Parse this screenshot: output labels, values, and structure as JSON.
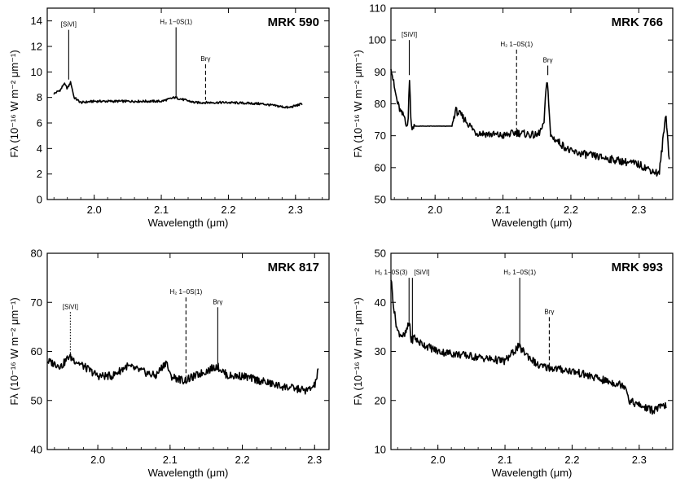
{
  "figure": {
    "x_label": "Wavelength (μm)",
    "y_label": "Fλ (10⁻¹⁶ W m⁻² μm⁻¹)"
  },
  "chart_data": [
    {
      "type": "line",
      "title": "MRK 590",
      "xlabel": "Wavelength (μm)",
      "ylabel": "Fλ (10⁻¹⁶ W m⁻² μm⁻¹)",
      "xlim": [
        1.93,
        2.35
      ],
      "ylim": [
        0,
        15
      ],
      "xticks": [
        "2.0",
        "2.1",
        "2.2",
        "2.3"
      ],
      "yticks": [
        "0",
        "2",
        "4",
        "6",
        "8",
        "10",
        "12",
        "14"
      ],
      "x": [
        1.94,
        1.95,
        1.955,
        1.96,
        1.965,
        1.97,
        1.98,
        2.0,
        2.05,
        2.1,
        2.12,
        2.15,
        2.2,
        2.25,
        2.29,
        2.31
      ],
      "y": [
        8.3,
        8.6,
        9.1,
        8.7,
        9.2,
        8.0,
        7.6,
        7.7,
        7.7,
        7.7,
        8.0,
        7.6,
        7.6,
        7.5,
        7.2,
        7.5
      ],
      "lines": [
        {
          "label": "[SiVI]",
          "x": 1.962,
          "top": 13.3,
          "bottom": 9.4,
          "style": "solid"
        },
        {
          "label": "H₂ 1−0S(1)",
          "x": 2.122,
          "top": 13.5,
          "bottom": 8.0,
          "style": "solid"
        },
        {
          "label": "Brγ",
          "x": 2.166,
          "top": 10.6,
          "bottom": 7.8,
          "style": "dashed"
        }
      ]
    },
    {
      "type": "line",
      "title": "MRK 766",
      "xlabel": "Wavelength (μm)",
      "ylabel": "Fλ (10⁻¹⁶ W m⁻² μm⁻¹)",
      "xlim": [
        1.935,
        2.35
      ],
      "ylim": [
        50,
        110
      ],
      "xticks": [
        "2.0",
        "2.1",
        "2.2",
        "2.3"
      ],
      "yticks": [
        "50",
        "60",
        "70",
        "80",
        "90",
        "100",
        "110"
      ],
      "x": [
        1.935,
        1.94,
        1.945,
        1.95,
        1.955,
        1.96,
        1.962,
        1.965,
        1.97,
        2.0,
        2.025,
        2.03,
        2.04,
        2.06,
        2.1,
        2.12,
        2.15,
        2.16,
        2.165,
        2.17,
        2.2,
        2.25,
        2.3,
        2.33,
        2.34,
        2.345
      ],
      "y": [
        92,
        85,
        80,
        77,
        76,
        72,
        89,
        73,
        73,
        73,
        73,
        78,
        76,
        71,
        70,
        71,
        70,
        73,
        89,
        70,
        65,
        63,
        61,
        58,
        77,
        62
      ],
      "lines": [
        {
          "label": "[SiVI]",
          "x": 1.962,
          "top": 100,
          "bottom": 89,
          "style": "solid"
        },
        {
          "label": "H₂ 1−0S(1)",
          "x": 2.12,
          "top": 97,
          "bottom": 70,
          "style": "dashed"
        },
        {
          "label": "Brγ",
          "x": 2.166,
          "top": 92,
          "bottom": 89,
          "style": "solid"
        }
      ]
    },
    {
      "type": "line",
      "title": "MRK 817",
      "xlabel": "Wavelength (μm)",
      "ylabel": "Fλ (10⁻¹⁶ W m⁻² μm⁻¹)",
      "xlim": [
        1.93,
        2.32
      ],
      "ylim": [
        40,
        80
      ],
      "xticks": [
        "2.0",
        "2.1",
        "2.2",
        "2.3"
      ],
      "yticks": [
        "40",
        "50",
        "60",
        "70",
        "80"
      ],
      "x": [
        1.93,
        1.95,
        1.96,
        1.97,
        1.98,
        2.0,
        2.02,
        2.04,
        2.06,
        2.08,
        2.095,
        2.1,
        2.12,
        2.15,
        2.165,
        2.18,
        2.2,
        2.25,
        2.29,
        2.3,
        2.305
      ],
      "y": [
        58,
        57,
        59,
        58,
        57,
        55,
        55,
        57,
        56,
        55,
        58,
        55,
        54,
        56,
        57,
        55,
        55,
        53,
        52,
        53,
        56
      ],
      "lines": [
        {
          "label": "[SiVI]",
          "x": 1.962,
          "top": 68,
          "bottom": 59,
          "style": "dotted"
        },
        {
          "label": "H₂ 1−0S(1)",
          "x": 2.122,
          "top": 71,
          "bottom": 54,
          "style": "dashed"
        },
        {
          "label": "Brγ",
          "x": 2.166,
          "top": 69,
          "bottom": 57,
          "style": "solid"
        }
      ]
    },
    {
      "type": "line",
      "title": "MRK 993",
      "xlabel": "Wavelength (μm)",
      "ylabel": "Fλ (10⁻¹⁶ W m⁻² μm⁻¹)",
      "xlim": [
        1.93,
        2.35
      ],
      "ylim": [
        10,
        50
      ],
      "xticks": [
        "2.0",
        "2.1",
        "2.2",
        "2.3"
      ],
      "yticks": [
        "10",
        "20",
        "30",
        "40",
        "50"
      ],
      "x": [
        1.93,
        1.935,
        1.94,
        1.95,
        1.958,
        1.96,
        1.965,
        1.97,
        2.0,
        2.05,
        2.1,
        2.12,
        2.15,
        2.2,
        2.25,
        2.28,
        2.285,
        2.3,
        2.32,
        2.34
      ],
      "y": [
        45,
        38,
        34,
        33,
        36,
        32,
        33,
        32,
        30,
        29,
        28,
        31,
        27,
        26,
        24,
        23,
        20,
        19,
        18,
        19
      ],
      "lines": [
        {
          "label": "H₂ 1−0S(3)",
          "x": 1.957,
          "top": 45,
          "bottom": 36,
          "style": "solid"
        },
        {
          "label": "[SiVI]",
          "x": 1.962,
          "top": 45,
          "bottom": 33,
          "style": "solid"
        },
        {
          "label": "H₂ 1−0S(1)",
          "x": 2.122,
          "top": 45,
          "bottom": 31,
          "style": "solid"
        },
        {
          "label": "Brγ",
          "x": 2.166,
          "top": 37,
          "bottom": 27,
          "style": "dashed"
        }
      ]
    }
  ]
}
